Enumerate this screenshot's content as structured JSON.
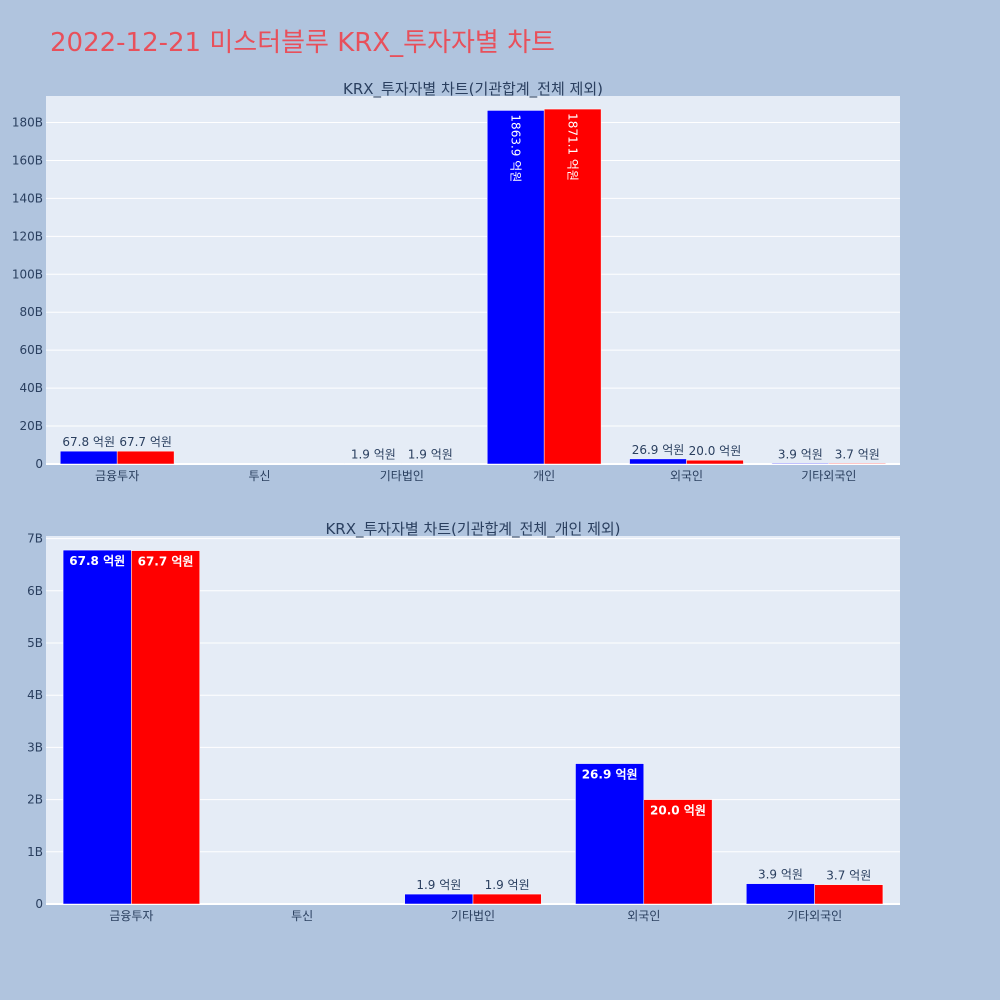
{
  "page": {
    "title": "2022-12-21 미스터블루 KRX_투자자별 차트"
  },
  "colors": {
    "background": "#b0c4de",
    "plot_bg": "#e5ecf6",
    "grid": "#ffffff",
    "title": "#e8505b",
    "axis_text": "#2a3f5f",
    "series_a": "#0000ff",
    "series_b": "#ff0000"
  },
  "chart_data": [
    {
      "type": "bar",
      "title": "KRX_투자자별 차트(기관합계_전체 제외)",
      "categories": [
        "금융투자",
        "투신",
        "기타법인",
        "개인",
        "외국인",
        "기타외국인"
      ],
      "series": [
        {
          "color": "#0000ff",
          "values": [
            6780000000,
            0,
            190000000,
            186390000000,
            2690000000,
            390000000
          ],
          "labels": [
            "67.8 억원",
            "",
            "1.9 억원",
            "1863.9 억원",
            "26.9 억원",
            "3.9 억원"
          ]
        },
        {
          "color": "#ff0000",
          "values": [
            6770000000,
            0,
            190000000,
            187110000000,
            2000000000,
            370000000
          ],
          "labels": [
            "67.7 억원",
            "",
            "1.9 억원",
            "1871.1 억원",
            "20.0 억원",
            "3.7 억원"
          ]
        }
      ],
      "ylim": [
        0,
        194000000000
      ],
      "yticks": [
        0,
        20000000000,
        40000000000,
        60000000000,
        80000000000,
        100000000000,
        120000000000,
        140000000000,
        160000000000,
        180000000000
      ],
      "ytick_labels": [
        "0",
        "20B",
        "40B",
        "60B",
        "80B",
        "100B",
        "120B",
        "140B",
        "160B",
        "180B"
      ],
      "label_mode": "auto_rotated_inside",
      "grid": true
    },
    {
      "type": "bar",
      "title": "KRX_투자자별 차트(기관합계_전체_개인 제외)",
      "categories": [
        "금융투자",
        "투신",
        "기타법인",
        "외국인",
        "기타외국인"
      ],
      "series": [
        {
          "color": "#0000ff",
          "values": [
            6780000000,
            0,
            190000000,
            2690000000,
            390000000
          ],
          "labels": [
            "67.8 억원",
            "",
            "1.9 억원",
            "26.9 억원",
            "3.9 억원"
          ]
        },
        {
          "color": "#ff0000",
          "values": [
            6770000000,
            0,
            190000000,
            2000000000,
            370000000
          ],
          "labels": [
            "67.7 억원",
            "",
            "1.9 억원",
            "20.0 억원",
            "3.7 억원"
          ]
        }
      ],
      "ylim": [
        0,
        7050000000
      ],
      "yticks": [
        0,
        1000000000,
        2000000000,
        3000000000,
        4000000000,
        5000000000,
        6000000000,
        7000000000
      ],
      "ytick_labels": [
        "0",
        "1B",
        "2B",
        "3B",
        "4B",
        "5B",
        "6B",
        "7B"
      ],
      "label_mode": "auto_inside",
      "grid": true
    }
  ]
}
